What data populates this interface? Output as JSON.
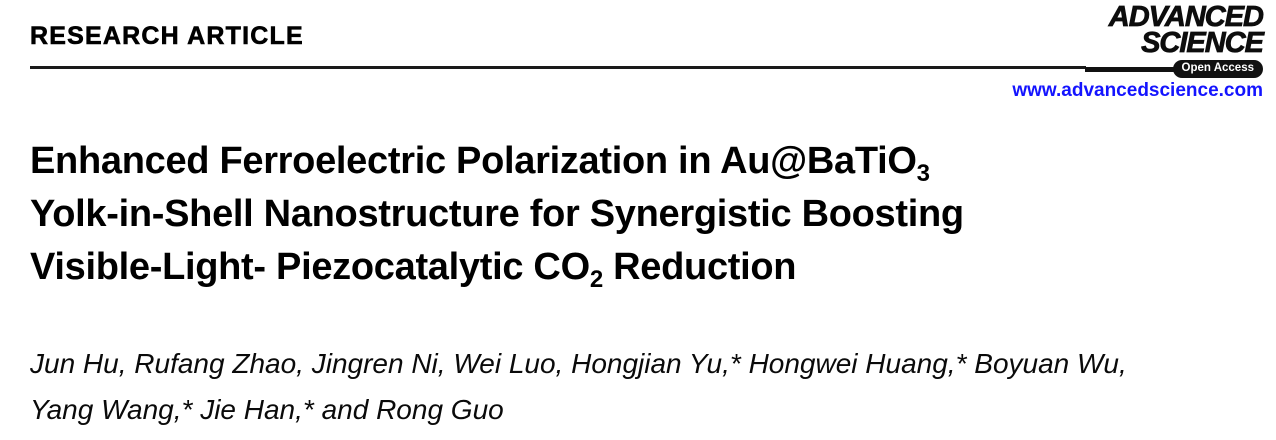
{
  "header": {
    "article_type": "RESEARCH ARTICLE",
    "journal": {
      "name_line1": "ADVANCED",
      "name_line2": "SCIENCE",
      "open_access_label": "Open Access",
      "website": "www.advancedscience.com"
    }
  },
  "title": {
    "line1_pre": "Enhanced Ferroelectric Polarization in Au@BaTiO",
    "line1_sub": "3",
    "line2": "Yolk-in-Shell Nanostructure for Synergistic Boosting",
    "line3_pre": "Visible-Light- Piezocatalytic CO",
    "line3_sub": "2",
    "line3_post": " Reduction"
  },
  "authors": {
    "line1": "Jun Hu, Rufang Zhao, Jingren Ni, Wei Luo, Hongjian Yu,* Hongwei Huang,* Boyuan Wu,",
    "line2": "Yang Wang,* Jie Han,* and Rong Guo"
  },
  "colors": {
    "link_blue": "#1414ff",
    "text_black": "#000000",
    "logo_black": "#111111"
  }
}
